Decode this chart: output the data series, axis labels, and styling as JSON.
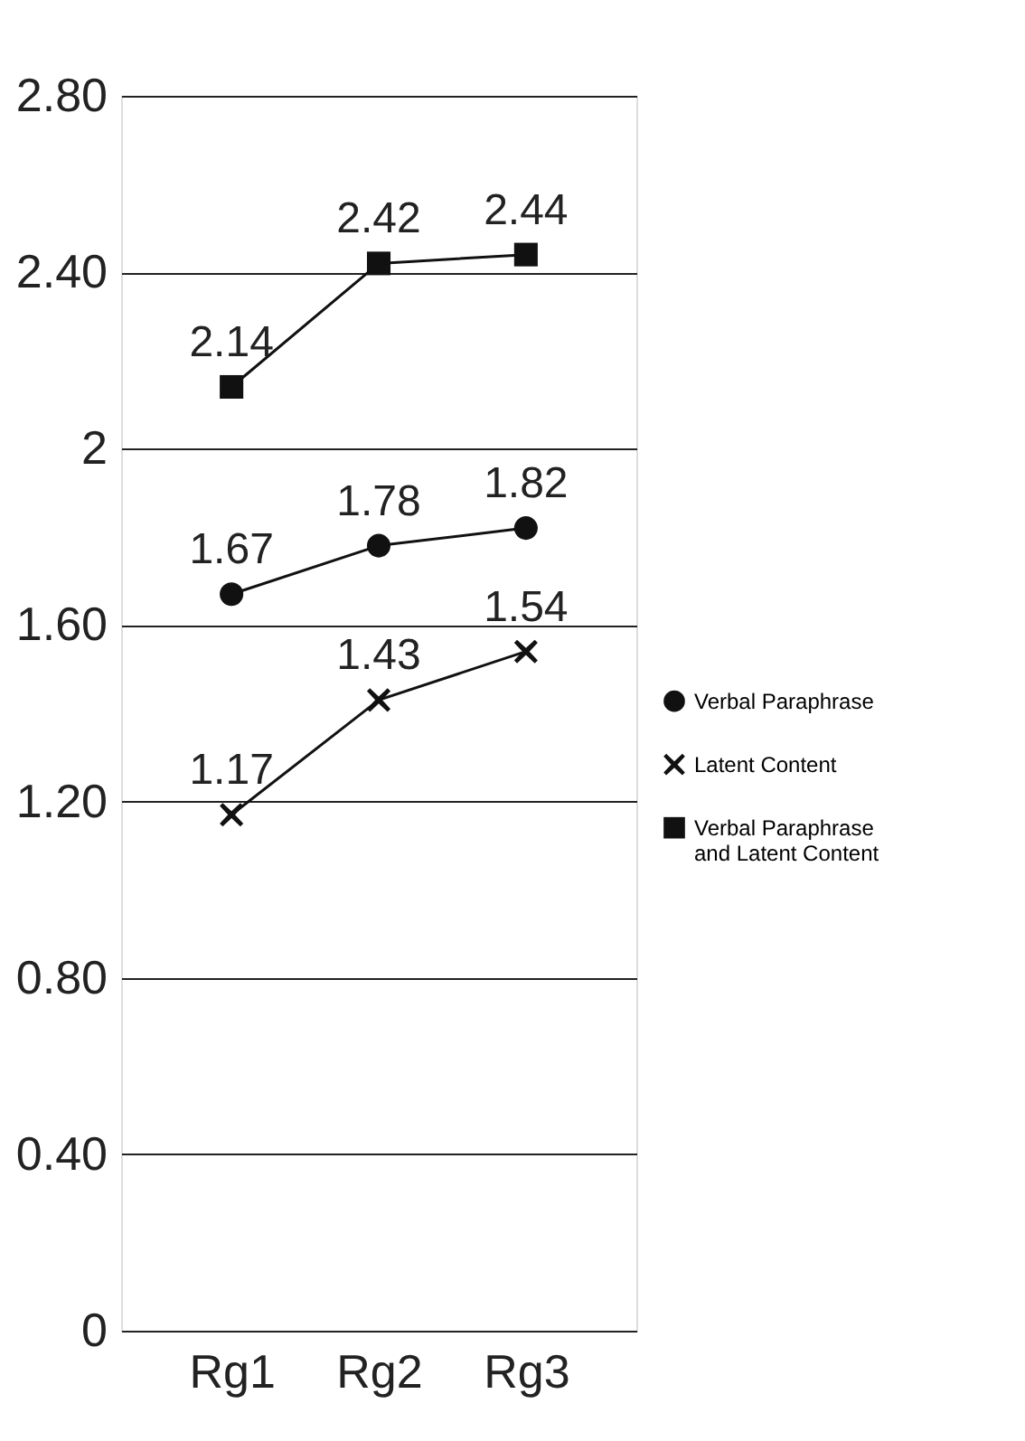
{
  "chart_data": {
    "type": "line",
    "categories": [
      "Rg1",
      "Rg2",
      "Rg3"
    ],
    "series": [
      {
        "name": "Verbal Paraphrase",
        "color": "#111111",
        "marker": "circle",
        "values": [
          1.67,
          1.78,
          1.82
        ]
      },
      {
        "name": "Latent Content",
        "color": "#111111",
        "marker": "cross",
        "values": [
          1.17,
          1.43,
          1.54
        ]
      },
      {
        "name": "Verbal Paraphrase and Latent Content",
        "color": "#111111",
        "marker": "square",
        "values": [
          2.14,
          2.42,
          2.44
        ]
      }
    ],
    "ylim": [
      0,
      2.8
    ],
    "yticks": [
      0,
      {
        "value": 0.4,
        "label": "0.40"
      },
      {
        "value": 0.8,
        "label": "0.80"
      },
      {
        "value": 1.2,
        "label": "1.20"
      },
      {
        "value": 1.6,
        "label": "1.60"
      },
      2,
      {
        "value": 2.4,
        "label": "2.40"
      },
      {
        "value": 2.8,
        "label": "2.80"
      }
    ],
    "grid": "y",
    "legend": "right",
    "data_labels": true,
    "line_style": "solid"
  }
}
